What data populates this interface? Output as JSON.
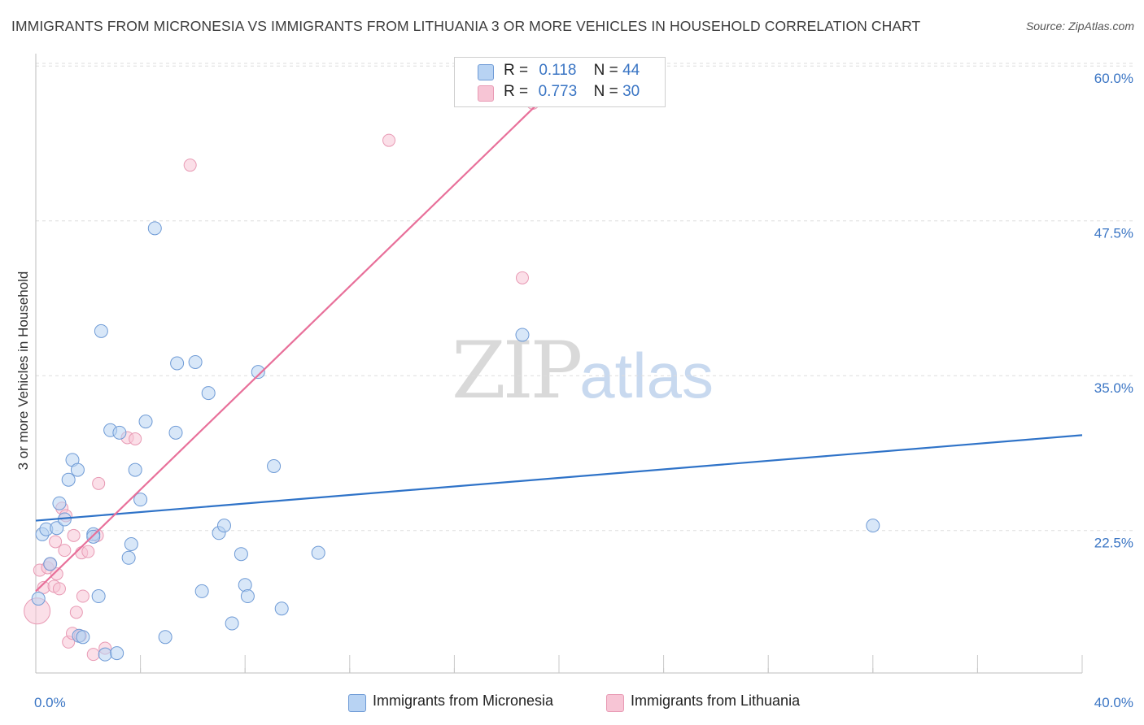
{
  "header": {
    "title": "IMMIGRANTS FROM MICRONESIA VS IMMIGRANTS FROM LITHUANIA 3 OR MORE VEHICLES IN HOUSEHOLD CORRELATION CHART",
    "source": "Source: ZipAtlas.com"
  },
  "watermark": {
    "zip": "ZIP",
    "atlas": "atlas"
  },
  "legend": {
    "r_label": "R =",
    "n_label": "N =",
    "micronesia": {
      "r": "0.118",
      "n": "44"
    },
    "lithuania": {
      "r": "0.773",
      "n": "30"
    }
  },
  "bottom_legend": {
    "micronesia": "Immigrants from Micronesia",
    "lithuania": "Immigrants from Lithuania"
  },
  "colors": {
    "micronesia_fill": "#b8d3f3",
    "micronesia_stroke": "#6f9bd6",
    "micronesia_line": "#2f73c8",
    "lithuania_fill": "#f7c5d5",
    "lithuania_stroke": "#e89ab4",
    "lithuania_line": "#e8709a",
    "grid": "#dedede",
    "tick": "#3a75c4"
  },
  "chart_data": {
    "type": "scatter",
    "title": "IMMIGRANTS FROM MICRONESIA VS IMMIGRANTS FROM LITHUANIA 3 OR MORE VEHICLES IN HOUSEHOLD CORRELATION CHART",
    "xlabel": "",
    "ylabel": "3 or more Vehicles in Household",
    "xlim": [
      0,
      40
    ],
    "ylim": [
      11,
      61
    ],
    "x_tick_labels": [
      "0.0%",
      "40.0%"
    ],
    "y_ticks": [
      22.5,
      35.0,
      47.5,
      60.0
    ],
    "y_tick_labels": [
      "22.5%",
      "35.0%",
      "47.5%",
      "60.0%"
    ],
    "grid": true,
    "legend_position": "top-center",
    "series": [
      {
        "name": "Immigrants from Micronesia",
        "R": 0.118,
        "N": 44,
        "trend": {
          "x": [
            0,
            40
          ],
          "y": [
            23.3,
            30.2
          ]
        },
        "points": [
          [
            0.1,
            17.0
          ],
          [
            0.25,
            22.2
          ],
          [
            0.4,
            22.6
          ],
          [
            0.55,
            19.8
          ],
          [
            0.8,
            22.7
          ],
          [
            0.9,
            24.7
          ],
          [
            1.1,
            23.4
          ],
          [
            1.25,
            26.6
          ],
          [
            1.4,
            28.2
          ],
          [
            1.6,
            27.4
          ],
          [
            1.65,
            14.0
          ],
          [
            1.8,
            13.9
          ],
          [
            2.2,
            22.2
          ],
          [
            2.2,
            22.0
          ],
          [
            2.4,
            17.2
          ],
          [
            2.5,
            38.6
          ],
          [
            2.65,
            12.5
          ],
          [
            2.85,
            30.6
          ],
          [
            3.1,
            12.6
          ],
          [
            3.2,
            30.4
          ],
          [
            3.55,
            20.3
          ],
          [
            3.65,
            21.4
          ],
          [
            3.8,
            27.4
          ],
          [
            4.0,
            25.0
          ],
          [
            4.2,
            31.3
          ],
          [
            4.55,
            46.9
          ],
          [
            4.95,
            13.9
          ],
          [
            5.35,
            30.4
          ],
          [
            5.4,
            36.0
          ],
          [
            6.1,
            36.1
          ],
          [
            6.35,
            17.6
          ],
          [
            6.6,
            33.6
          ],
          [
            7.0,
            22.3
          ],
          [
            7.2,
            22.9
          ],
          [
            7.5,
            15.0
          ],
          [
            7.85,
            20.6
          ],
          [
            8.0,
            18.1
          ],
          [
            8.1,
            17.2
          ],
          [
            8.5,
            35.3
          ],
          [
            9.1,
            27.7
          ],
          [
            9.4,
            16.2
          ],
          [
            10.8,
            20.7
          ],
          [
            18.6,
            38.3
          ],
          [
            32.0,
            22.9
          ]
        ]
      },
      {
        "name": "Immigrants from Lithuania",
        "R": 0.773,
        "N": 30,
        "trend": {
          "x": [
            0,
            19.6
          ],
          "y": [
            17.6,
            57.8
          ]
        },
        "points": [
          [
            0.05,
            16.0
          ],
          [
            0.15,
            19.3
          ],
          [
            0.3,
            17.9
          ],
          [
            0.45,
            19.5
          ],
          [
            0.55,
            19.8
          ],
          [
            0.7,
            18.0
          ],
          [
            0.75,
            21.6
          ],
          [
            0.8,
            19.0
          ],
          [
            0.9,
            17.8
          ],
          [
            1.0,
            24.3
          ],
          [
            1.1,
            20.9
          ],
          [
            1.15,
            23.7
          ],
          [
            1.25,
            13.5
          ],
          [
            1.4,
            14.2
          ],
          [
            1.45,
            22.1
          ],
          [
            1.55,
            15.9
          ],
          [
            1.7,
            14.0
          ],
          [
            1.75,
            20.7
          ],
          [
            1.8,
            17.2
          ],
          [
            2.0,
            20.8
          ],
          [
            2.2,
            12.5
          ],
          [
            2.35,
            22.1
          ],
          [
            2.4,
            26.3
          ],
          [
            2.65,
            13.0
          ],
          [
            3.5,
            30.0
          ],
          [
            3.8,
            29.9
          ],
          [
            5.9,
            52.0
          ],
          [
            13.5,
            54.0
          ],
          [
            18.6,
            42.9
          ],
          [
            19.0,
            57.0
          ]
        ]
      }
    ]
  }
}
